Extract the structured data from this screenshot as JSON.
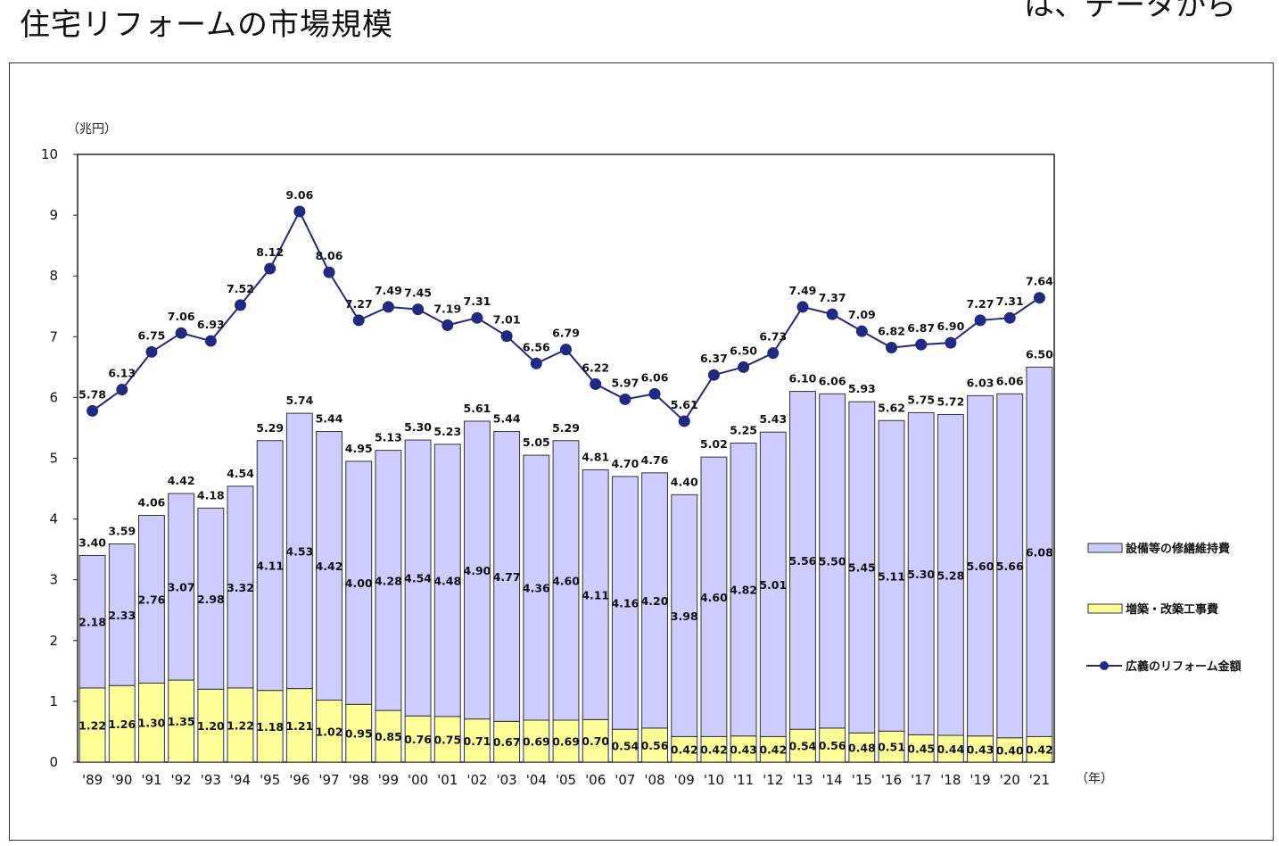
{
  "title": "住宅リフォームの市場規模",
  "clipped_header_text": "は、データから",
  "chart_data": {
    "type": "bar",
    "stacked": true,
    "y_unit_label": "（兆円）",
    "x_unit_label": "（年）",
    "ylim": [
      0,
      10
    ],
    "yticks": [
      "0",
      "1",
      "2",
      "3",
      "4",
      "5",
      "6",
      "7",
      "8",
      "9",
      "10"
    ],
    "grid": false,
    "legend_position": "right",
    "categories": [
      "'89",
      "'90",
      "'91",
      "'92",
      "'93",
      "'94",
      "'95",
      "'96",
      "'97",
      "'98",
      "'99",
      "'00",
      "'01",
      "'02",
      "'03",
      "'04",
      "'05",
      "'06",
      "'07",
      "'08",
      "'09",
      "'10",
      "'11",
      "'12",
      "'13",
      "'14",
      "'15",
      "'16",
      "'17",
      "'18",
      "'19",
      "'20",
      "'21"
    ],
    "series": [
      {
        "name": "増築・改築工事費",
        "kind": "bar",
        "color": "#ffff99",
        "values": [
          1.22,
          1.26,
          1.3,
          1.35,
          1.2,
          1.22,
          1.18,
          1.21,
          1.02,
          0.95,
          0.85,
          0.76,
          0.75,
          0.71,
          0.67,
          0.69,
          0.69,
          0.7,
          0.54,
          0.56,
          0.42,
          0.42,
          0.43,
          0.42,
          0.54,
          0.56,
          0.48,
          0.51,
          0.45,
          0.44,
          0.43,
          0.4,
          0.42
        ],
        "labels": [
          "1.22",
          "1.26",
          "1.30",
          "1.35",
          "1.20",
          "1.22",
          "1.18",
          "1.21",
          "1.02",
          "0.95",
          "0.85",
          "0.76",
          "0.75",
          "0.71",
          "0.67",
          "0.69",
          "0.69",
          "0.70",
          "0.54",
          "0.56",
          "0.42",
          "0.42",
          "0.43",
          "0.42",
          "0.54",
          "0.56",
          "0.48",
          "0.51",
          "0.45",
          "0.44",
          "0.43",
          "0.40",
          "0.42"
        ]
      },
      {
        "name": "設備等の修繕維持費",
        "kind": "bar",
        "color": "#ccccff",
        "values": [
          2.18,
          2.33,
          2.76,
          3.07,
          2.98,
          3.32,
          4.11,
          4.53,
          4.42,
          4.0,
          4.28,
          4.54,
          4.48,
          4.9,
          4.77,
          4.36,
          4.6,
          4.11,
          4.16,
          4.2,
          3.98,
          4.6,
          4.82,
          5.01,
          5.56,
          5.5,
          5.45,
          5.11,
          5.3,
          5.28,
          5.6,
          5.66,
          6.08
        ],
        "labels": [
          "2.18",
          "2.33",
          "2.76",
          "3.07",
          "2.98",
          "3.32",
          "4.11",
          "4.53",
          "4.42",
          "4.00",
          "4.28",
          "4.54",
          "4.48",
          "4.90",
          "4.77",
          "4.36",
          "4.60",
          "4.11",
          "4.16",
          "4.20",
          "3.98",
          "4.60",
          "4.82",
          "5.01",
          "5.56",
          "5.50",
          "5.45",
          "5.11",
          "5.30",
          "5.28",
          "5.60",
          "5.66",
          "6.08"
        ]
      },
      {
        "name": "広義のリフォーム金額",
        "kind": "line",
        "color": "#1f2a80",
        "values": [
          5.78,
          6.13,
          6.75,
          7.06,
          6.93,
          7.52,
          8.12,
          9.06,
          8.06,
          7.27,
          7.49,
          7.45,
          7.19,
          7.31,
          7.01,
          6.56,
          6.79,
          6.22,
          5.97,
          6.06,
          5.61,
          6.37,
          6.5,
          6.73,
          7.49,
          7.37,
          7.09,
          6.82,
          6.87,
          6.9,
          7.27,
          7.31,
          7.64
        ],
        "labels": [
          "5.78",
          "6.13",
          "6.75",
          "7.06",
          "6.93",
          "7.52",
          "8.12",
          "9.06",
          "8.06",
          "7.27",
          "7.49",
          "7.45",
          "7.19",
          "7.31",
          "7.01",
          "6.56",
          "6.79",
          "6.22",
          "5.97",
          "6.06",
          "5.61",
          "6.37",
          "6.50",
          "6.73",
          "7.49",
          "7.37",
          "7.09",
          "6.82",
          "6.87",
          "6.90",
          "7.27",
          "7.31",
          "7.64"
        ]
      }
    ],
    "totals": {
      "values": [
        3.4,
        3.59,
        4.06,
        4.42,
        4.18,
        4.54,
        5.29,
        5.74,
        5.44,
        4.95,
        5.13,
        5.3,
        5.23,
        5.61,
        5.44,
        5.05,
        5.29,
        4.81,
        4.7,
        4.76,
        4.4,
        5.02,
        5.25,
        5.43,
        6.1,
        6.06,
        5.93,
        5.62,
        5.75,
        5.72,
        6.03,
        6.06,
        6.5
      ],
      "labels": [
        "3.40",
        "3.59",
        "4.06",
        "4.42",
        "4.18",
        "4.54",
        "5.29",
        "5.74",
        "5.44",
        "4.95",
        "5.13",
        "5.30",
        "5.23",
        "5.61",
        "5.44",
        "5.05",
        "5.29",
        "4.81",
        "4.70",
        "4.76",
        "4.40",
        "5.02",
        "5.25",
        "5.43",
        "6.10",
        "6.06",
        "5.93",
        "5.62",
        "5.75",
        "5.72",
        "6.03",
        "6.06",
        "6.50"
      ]
    },
    "legend_order": [
      "設備等の修繕維持費",
      "増築・改築工事費",
      "広義のリフォーム金額"
    ]
  }
}
